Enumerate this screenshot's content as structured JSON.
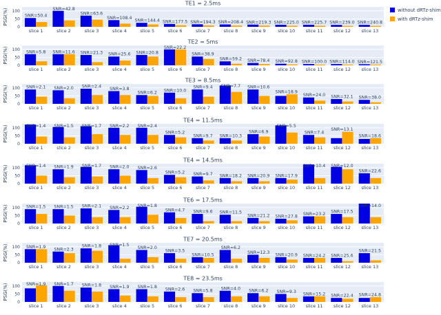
{
  "chart_data": {
    "type": "bar",
    "categories": [
      "slice 1",
      "slice 2",
      "slice 3",
      "slice 4",
      "slice 5",
      "slice 6",
      "slice 7",
      "slice 8",
      "slice 9",
      "slice 10",
      "slice 11",
      "slice 12",
      "slice 13"
    ],
    "ylabel": "PSG(%)",
    "yticks": [
      0,
      50,
      100
    ],
    "ylim": [
      0,
      125
    ],
    "legend": {
      "placement": "top-right",
      "entries": [
        "without dRTz-shim",
        "with dRTz-shim"
      ]
    },
    "colors": {
      "without": "#0000e0",
      "with": "#ffa500",
      "panel_bg": "#e5ecf6",
      "grid": "#ffffff"
    },
    "panels": [
      {
        "title": "TE1 = 2.5ms",
        "snr": [
          "SNR=50.4",
          "SNR=42.8",
          "SNR=63.6",
          "SNR=108.4",
          "SNR=144.4",
          "SNR=177.5",
          "SNR=194.3",
          "SNR=208.4",
          "SNR=219.3",
          "SNR=225.0",
          "SNR=225.7",
          "SNR=239.0",
          "SNR=240.8"
        ],
        "series": [
          {
            "name": "without dRTz-shim",
            "values": [
              55,
              100,
              70,
              42,
              25,
              18,
              16,
              15,
              14,
              13,
              13,
              12,
              12
            ]
          },
          {
            "name": "with dRTz-shim",
            "values": [
              30,
              40,
              45,
              20,
              15,
              10,
              9,
              8,
              8,
              7,
              7,
              6,
              6
            ]
          }
        ]
      },
      {
        "title": "TE2 = 5ms",
        "snr": [
          "SNR=5.8",
          "SNR=11.6",
          "SNR=21.3",
          "SNR=25.6",
          "SNR=20.8",
          "SNR=22.2",
          "SNR=38.9",
          "SNR=59.2",
          "SNR=78.4",
          "SNR=92.8",
          "SNR=100.0",
          "SNR=114.0",
          "SNR=121.5"
        ],
        "series": [
          {
            "name": "without dRTz-shim",
            "values": [
              70,
              70,
              65,
              55,
              65,
              100,
              55,
              25,
              15,
              10,
              8,
              8,
              7
            ]
          },
          {
            "name": "with dRTz-shim",
            "values": [
              25,
              70,
              20,
              30,
              55,
              100,
              40,
              10,
              8,
              6,
              5,
              5,
              5
            ]
          }
        ]
      },
      {
        "title": "TE3 = 8.5ms",
        "snr": [
          "SNR=2.1",
          "SNR=2.0",
          "SNR=2.4",
          "SNR=3.8",
          "SNR=6.2",
          "SNR=10.0",
          "SNR=9.4",
          "SNR=7.7",
          "SNR=10.6",
          "SNR=18.9",
          "SNR=24.0",
          "SNR=32.1",
          "SNR=38.0"
        ],
        "series": [
          {
            "name": "without dRTz-shim",
            "values": [
              90,
              85,
              95,
              80,
              55,
              70,
              90,
              115,
              90,
              50,
              40,
              30,
              25
            ]
          },
          {
            "name": "with dRTz-shim",
            "values": [
              45,
              35,
              55,
              55,
              50,
              35,
              45,
              75,
              50,
              60,
              20,
              15,
              10
            ]
          }
        ]
      },
      {
        "title": "TE4 = 11.5ms",
        "snr": [
          "SNR=1.4",
          "SNR=1.5",
          "SNR=1.7",
          "SNR=2.2",
          "SNR=2.4",
          "SNR=5.2",
          "SNR=9.7",
          "SNR=10.3",
          "SNR=6.9",
          "SNR=5.5",
          "SNR=7.4",
          "SNR=13.1",
          "SNR=18.6"
        ],
        "series": [
          {
            "name": "without dRTz-shim",
            "values": [
              120,
              105,
              110,
              100,
              100,
              55,
              35,
              35,
              60,
              115,
              55,
              35,
              30
            ]
          },
          {
            "name": "with dRTz-shim",
            "values": [
              45,
              40,
              60,
              55,
              55,
              40,
              20,
              20,
              45,
              70,
              40,
              75,
              35
            ]
          }
        ]
      },
      {
        "title": "TE4 = 14.5ms",
        "snr": [
          "SNR=1.4",
          "SNR=1.9",
          "SNR=1.7",
          "SNR=2.0",
          "SNR=2.6",
          "SNR=5.2",
          "SNR=9.7",
          "SNR=18.2",
          "SNR=20.9",
          "SNR=17.9",
          "SNR=10.4",
          "SNR=12.0",
          "SNR=22.6"
        ],
        "series": [
          {
            "name": "without dRTz-shim",
            "values": [
              115,
              90,
              105,
              90,
              85,
              55,
              45,
              35,
              35,
              35,
              120,
              105,
              65
            ]
          },
          {
            "name": "with dRTz-shim",
            "values": [
              50,
              40,
              45,
              50,
              35,
              40,
              20,
              15,
              15,
              25,
              35,
              90,
              35
            ]
          }
        ]
      },
      {
        "title": "TE6 = 17.5ms",
        "snr": [
          "SNR=1.5",
          "SNR=1.5",
          "SNR=2.1",
          "SNR=2.2",
          "SNR=1.8",
          "SNR=4.7",
          "SNR=9.6",
          "SNR=11.5",
          "SNR=21.2",
          "SNR=27.8",
          "SNR=23.2",
          "SNR=17.5",
          "SNR=14.0"
        ],
        "series": [
          {
            "name": "without dRTz-shim",
            "values": [
              90,
              90,
              95,
              85,
              105,
              70,
              60,
              55,
              35,
              30,
              45,
              60,
              150
            ]
          },
          {
            "name": "with dRTz-shim",
            "values": [
              60,
              50,
              40,
              40,
              55,
              35,
              15,
              15,
              15,
              20,
              45,
              40,
              40
            ]
          }
        ]
      },
      {
        "title": "TE7 = 20.5ms",
        "snr": [
          "SNR=1.9",
          "SNR=2.3",
          "SNR=1.8",
          "SNR=1.5",
          "SNR=2.0",
          "SNR=3.5",
          "SNR=10.5",
          "SNR=6.2",
          "SNR=12.3",
          "SNR=20.9",
          "SNR=24.2",
          "SNR=25.6",
          "SNR=21.5"
        ],
        "series": [
          {
            "name": "without dRTz-shim",
            "values": [
              85,
              70,
              90,
              110,
              80,
              60,
              35,
              80,
              50,
              35,
              30,
              30,
              60
            ]
          },
          {
            "name": "with dRTz-shim",
            "values": [
              85,
              60,
              75,
              25,
              35,
              25,
              30,
              25,
              30,
              20,
              30,
              10,
              15
            ]
          }
        ]
      },
      {
        "title": "TE8 = 23.5ms",
        "snr": [
          "SNR=1.9",
          "SNR=1.7",
          "SNR=1.8",
          "SNR=1.9",
          "SNR=1.8",
          "SNR=2.6",
          "SNR=5.8",
          "SNR=4.0",
          "SNR=6.2",
          "SNR=9.3",
          "SNR=15.2",
          "SNR=22.4",
          "SNR=24.8"
        ],
        "series": [
          {
            "name": "without dRTz-shim",
            "values": [
              85,
              100,
              90,
              80,
              80,
              65,
              55,
              70,
              55,
              50,
              35,
              25,
              25
            ]
          },
          {
            "name": "with dRTz-shim",
            "values": [
              105,
              70,
              65,
              40,
              35,
              30,
              30,
              35,
              35,
              25,
              35,
              20,
              30
            ]
          }
        ]
      }
    ]
  }
}
